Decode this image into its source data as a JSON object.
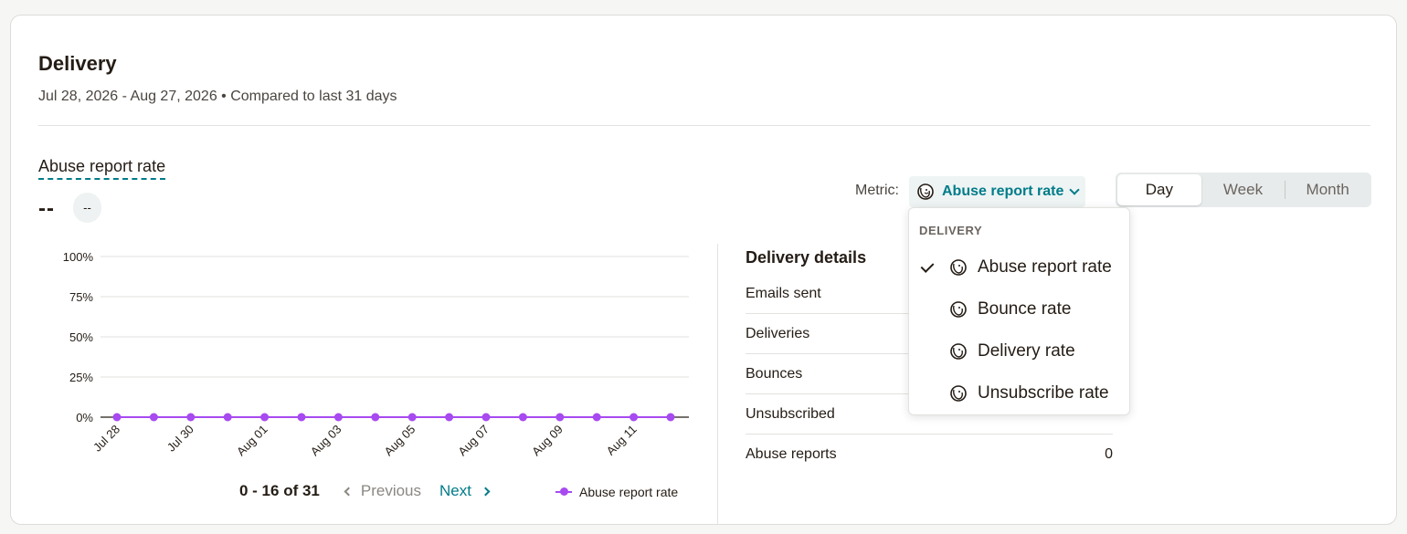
{
  "header": {
    "title": "Delivery",
    "subtitle": "Jul 28, 2026 - Aug 27, 2026 • Compared to last 31 days"
  },
  "metric": {
    "title": "Abuse report rate",
    "value": "--",
    "delta": "--"
  },
  "controls": {
    "metric_label": "Metric:",
    "selected_metric": "Abuse report rate",
    "metric_icon": "mailchimp-freddie-icon",
    "periods": [
      "Day",
      "Week",
      "Month"
    ],
    "active_period": "Day"
  },
  "dropdown": {
    "group_label": "DELIVERY",
    "items": [
      "Abuse report rate",
      "Bounce rate",
      "Delivery rate",
      "Unsubscribe rate"
    ],
    "selected": "Abuse report rate"
  },
  "pagination": {
    "range": "0 - 16 of 31",
    "previous": "Previous",
    "next": "Next"
  },
  "legend": {
    "series": "Abuse report rate"
  },
  "details": {
    "title": "Delivery details",
    "rows": [
      {
        "label": "Emails sent",
        "value": ""
      },
      {
        "label": "Deliveries",
        "value": ""
      },
      {
        "label": "Bounces",
        "value": ""
      },
      {
        "label": "Unsubscribed",
        "value": ""
      },
      {
        "label": "Abuse reports",
        "value": "0"
      }
    ]
  },
  "chart_data": {
    "type": "line",
    "x": [
      "Jul 28",
      "Jul 29",
      "Jul 30",
      "Jul 31",
      "Aug 01",
      "Aug 02",
      "Aug 03",
      "Aug 04",
      "Aug 05",
      "Aug 06",
      "Aug 07",
      "Aug 08",
      "Aug 09",
      "Aug 10",
      "Aug 11",
      "Aug 12"
    ],
    "x_tick_labels": [
      "Jul 28",
      "Jul 30",
      "Aug 01",
      "Aug 03",
      "Aug 05",
      "Aug 07",
      "Aug 09",
      "Aug 11"
    ],
    "series": [
      {
        "name": "Abuse report rate",
        "values": [
          0,
          0,
          0,
          0,
          0,
          0,
          0,
          0,
          0,
          0,
          0,
          0,
          0,
          0,
          0,
          0
        ]
      }
    ],
    "y_ticks": [
      "0%",
      "25%",
      "50%",
      "75%",
      "100%"
    ],
    "ylim": [
      0,
      100
    ],
    "grid": true,
    "legend": "bottom-right",
    "color": "#a74af0"
  }
}
